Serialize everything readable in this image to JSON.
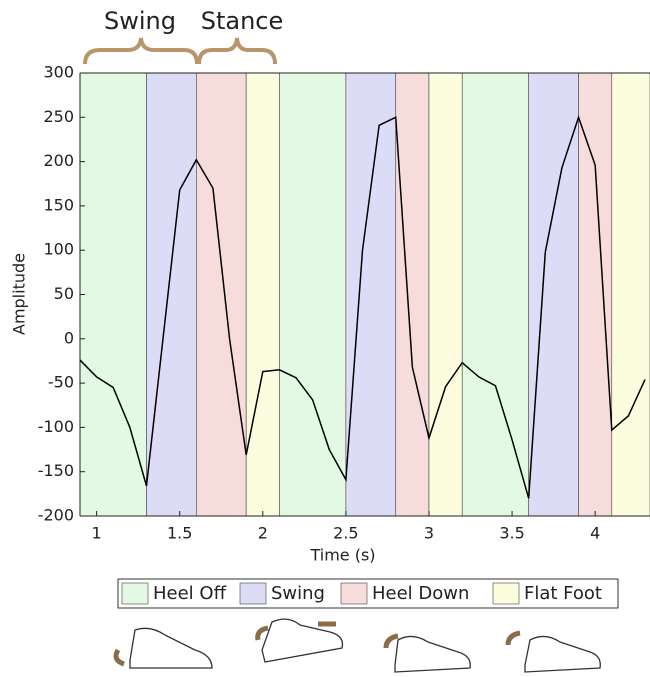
{
  "chart_data": {
    "type": "line",
    "x_label": "Time (s)",
    "y_label": "Amplitude",
    "annotations": [
      {
        "text": "Swing"
      },
      {
        "text": "Stance"
      }
    ],
    "x": [
      0.9,
      1.0,
      1.1,
      1.2,
      1.3,
      1.5,
      1.6,
      1.7,
      1.8,
      1.9,
      2.0,
      2.1,
      2.2,
      2.3,
      2.4,
      2.5,
      2.6,
      2.7,
      2.8,
      2.9,
      3.0,
      3.1,
      3.2,
      3.3,
      3.4,
      3.5,
      3.6,
      3.7,
      3.8,
      3.9,
      4.0,
      4.1,
      4.2,
      4.3
    ],
    "values": [
      -24,
      -43,
      -55,
      -100,
      -166,
      168,
      202,
      170,
      0,
      -131,
      -37,
      -35,
      -44,
      -69,
      -125,
      -159,
      100,
      241,
      250,
      -32,
      -112,
      -54,
      -27,
      -43,
      -53,
      -114,
      -180,
      98,
      193,
      250,
      196,
      -103,
      -87,
      -46
    ],
    "color": "#000000",
    "xlim": [
      0.9,
      4.33
    ],
    "ylim": [
      -200,
      300
    ],
    "xticks": [
      1,
      1.5,
      2,
      2.5,
      3,
      3.5,
      4
    ],
    "yticks": [
      -200,
      -150,
      -100,
      -50,
      0,
      50,
      100,
      150,
      200,
      250,
      300
    ],
    "phases": [
      {
        "name": "Heel Off",
        "color": "#e4f9e4"
      },
      {
        "name": "Swing",
        "color": "#dcdcf6"
      },
      {
        "name": "Heel Down",
        "color": "#f7dcdc"
      },
      {
        "name": "Flat Foot",
        "color": "#fcfcdf"
      }
    ],
    "regions": [
      {
        "start": 0.9,
        "end": 1.3,
        "phase": "Heel Off"
      },
      {
        "start": 1.3,
        "end": 1.6,
        "phase": "Swing"
      },
      {
        "start": 1.6,
        "end": 1.9,
        "phase": "Heel Down"
      },
      {
        "start": 1.9,
        "end": 2.1,
        "phase": "Flat Foot"
      },
      {
        "start": 2.1,
        "end": 2.5,
        "phase": "Heel Off"
      },
      {
        "start": 2.5,
        "end": 2.8,
        "phase": "Swing"
      },
      {
        "start": 2.8,
        "end": 3.0,
        "phase": "Heel Down"
      },
      {
        "start": 3.0,
        "end": 3.2,
        "phase": "Flat Foot"
      },
      {
        "start": 3.2,
        "end": 3.6,
        "phase": "Heel Off"
      },
      {
        "start": 3.6,
        "end": 3.9,
        "phase": "Swing"
      },
      {
        "start": 3.9,
        "end": 4.1,
        "phase": "Heel Down"
      },
      {
        "start": 4.1,
        "end": 4.33,
        "phase": "Flat Foot"
      }
    ]
  }
}
